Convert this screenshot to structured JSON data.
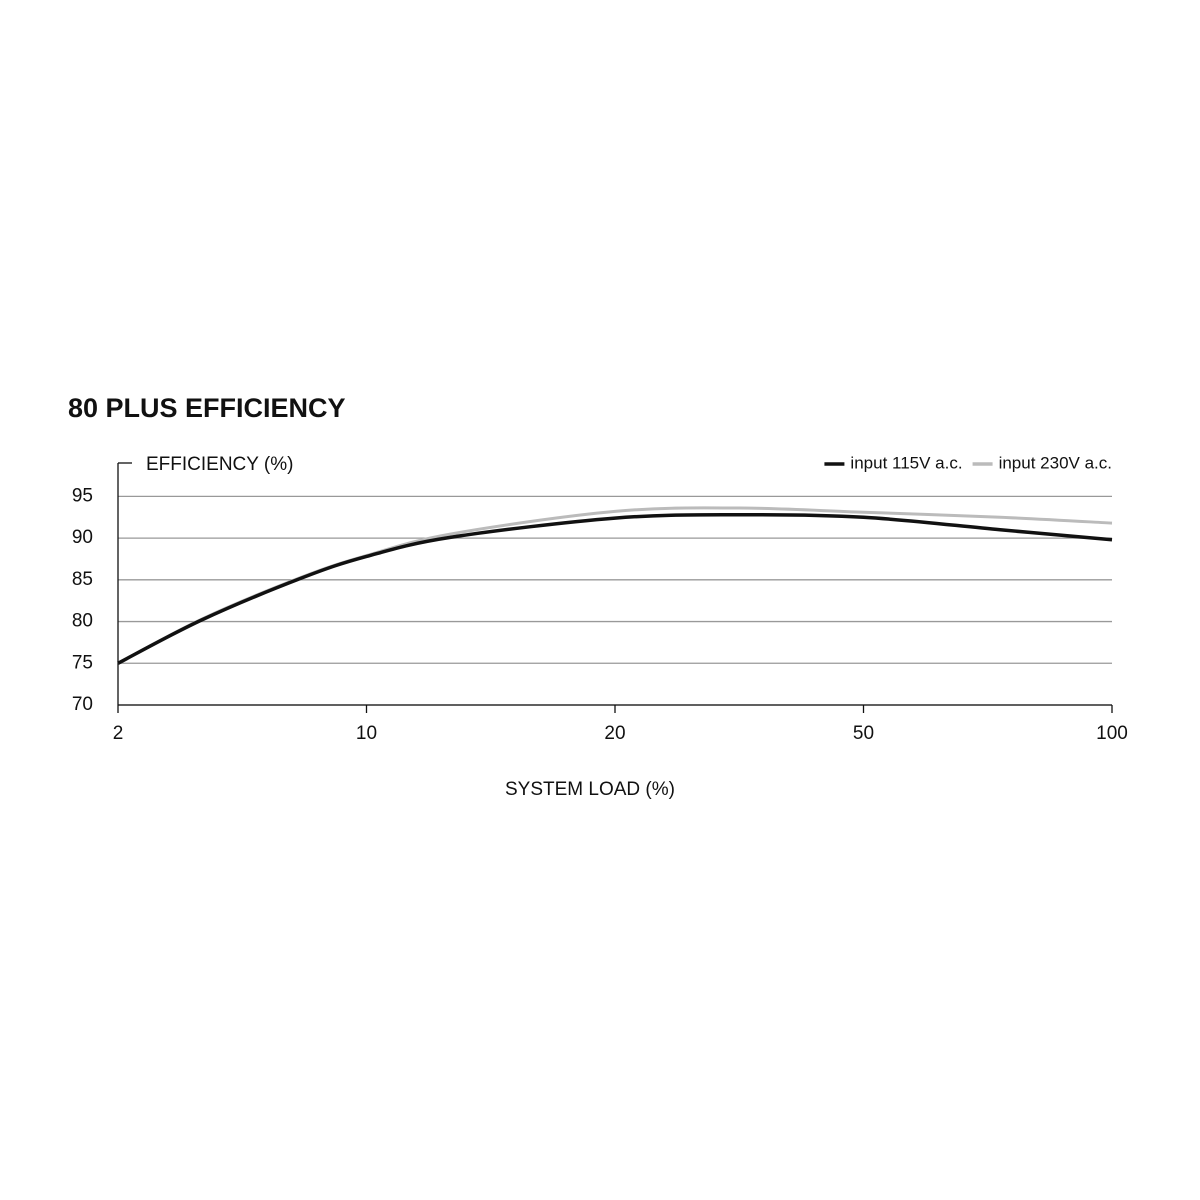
{
  "chart_data": {
    "type": "line",
    "title": "80 PLUS EFFICIENCY",
    "y_label": "EFFICIENCY (%)",
    "x_label": "SYSTEM LOAD (%)",
    "x": [
      2,
      4.7,
      7.9,
      10,
      13.4,
      20,
      35,
      50,
      77.5,
      100
    ],
    "series": [
      {
        "name": "input 115V a.c.",
        "color": "#111111",
        "values": [
          75,
          80.2,
          85.2,
          87.8,
          90.1,
          92.4,
          92.8,
          92.5,
          91,
          89.8
        ]
      },
      {
        "name": "input 230V a.c.",
        "color": "#bbbbbb",
        "values": [
          75,
          80.3,
          85.3,
          87.9,
          90.5,
          93.2,
          93.6,
          93.1,
          92.5,
          91.8
        ]
      }
    ],
    "xticks": [
      2,
      10,
      20,
      50,
      100
    ],
    "ylim": [
      70,
      99
    ],
    "yticks": [
      70,
      75,
      80,
      85,
      90,
      95
    ],
    "grid": true,
    "legend": "top-right"
  }
}
